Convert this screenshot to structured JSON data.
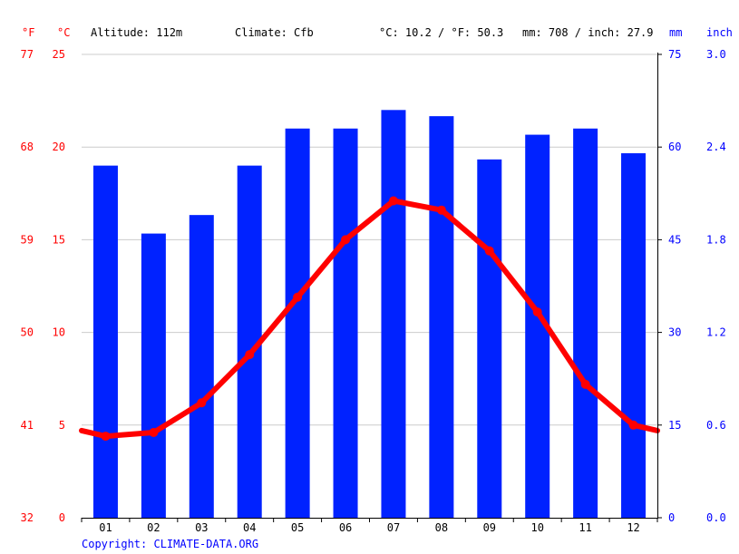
{
  "header": {
    "unit_f": "°F",
    "unit_c": "°C",
    "altitude": "Altitude: 112m",
    "climate": "Climate: Cfb",
    "avg_temp": "°C: 10.2 / °F: 50.3",
    "precip_total": "mm: 708 / inch: 27.9",
    "unit_mm": "mm",
    "unit_inch": "inch"
  },
  "footer": {
    "copyright": "Copyright: CLIMATE-DATA.ORG"
  },
  "colors": {
    "temperature": "#ff0000",
    "precipitation": "#0022ff",
    "axis_temp_labels": "#ff0000",
    "axis_precip_labels": "#0000ff",
    "grid": "#cccccc"
  },
  "chart_data": {
    "type": "bar",
    "categories": [
      "01",
      "02",
      "03",
      "04",
      "05",
      "06",
      "07",
      "08",
      "09",
      "10",
      "11",
      "12"
    ],
    "series": [
      {
        "type": "bar",
        "axis": "right",
        "values": [
          57,
          46,
          49,
          57,
          63,
          63,
          66,
          65,
          58,
          62,
          63,
          59
        ]
      },
      {
        "type": "line",
        "axis": "left",
        "values": [
          4.4,
          4.6,
          6.2,
          8.8,
          11.9,
          15.0,
          17.1,
          16.6,
          14.4,
          11.1,
          7.2,
          5.0
        ]
      }
    ],
    "line_edges": {
      "start": 4.7,
      "end": 4.7
    },
    "ylim_c": [
      0,
      25
    ],
    "ylim_mm": [
      0,
      75
    ],
    "ticks": {
      "f": [
        "77",
        "68",
        "59",
        "50",
        "41",
        "32"
      ],
      "c": [
        "25",
        "20",
        "15",
        "10",
        "5",
        "0"
      ],
      "mm": [
        "75",
        "60",
        "45",
        "30",
        "15",
        "0"
      ],
      "inch": [
        "3.0",
        "2.4",
        "1.8",
        "1.2",
        "0.6",
        "0.0"
      ]
    },
    "tick_values_c": [
      25,
      20,
      15,
      10,
      5,
      0
    ],
    "grid": true
  }
}
